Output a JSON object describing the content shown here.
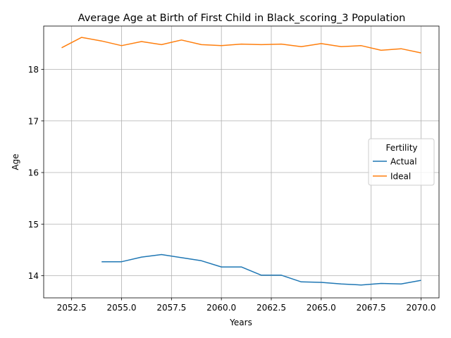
{
  "chart_data": {
    "type": "line",
    "title": "Average Age at Birth of First Child in Black_scoring_3 Population",
    "xlabel": "Years",
    "ylabel": "Age",
    "xlim": [
      2051.1,
      2070.9
    ],
    "ylim": [
      13.57,
      18.84
    ],
    "xticks": [
      2052.5,
      2055.0,
      2057.5,
      2060.0,
      2062.5,
      2065.0,
      2067.5,
      2070.0
    ],
    "xtick_labels": [
      "2052.5",
      "2055.0",
      "2057.5",
      "2060.0",
      "2062.5",
      "2065.0",
      "2067.5",
      "2070.0"
    ],
    "yticks": [
      14,
      15,
      16,
      17,
      18
    ],
    "ytick_labels": [
      "14",
      "15",
      "16",
      "17",
      "18"
    ],
    "grid": true,
    "legend": {
      "title": "Fertility",
      "placement": "center-right"
    },
    "series": [
      {
        "name": "Actual",
        "color": "#1f77b4",
        "x": [
          2054,
          2055,
          2056,
          2057,
          2058,
          2059,
          2060,
          2061,
          2062,
          2063,
          2064,
          2065,
          2066,
          2067,
          2068,
          2069,
          2070
        ],
        "values": [
          14.27,
          14.27,
          14.36,
          14.41,
          14.35,
          14.29,
          14.17,
          14.17,
          14.01,
          14.01,
          13.88,
          13.87,
          13.84,
          13.82,
          13.85,
          13.84,
          13.91
        ]
      },
      {
        "name": "Ideal",
        "color": "#ff7f0e",
        "x": [
          2052,
          2053,
          2054,
          2055,
          2056,
          2057,
          2058,
          2059,
          2060,
          2061,
          2062,
          2063,
          2064,
          2065,
          2066,
          2067,
          2068,
          2069,
          2070
        ],
        "values": [
          18.42,
          18.62,
          18.55,
          18.46,
          18.54,
          18.48,
          18.57,
          18.48,
          18.46,
          18.49,
          18.48,
          18.49,
          18.44,
          18.5,
          18.44,
          18.46,
          18.37,
          18.4,
          18.32
        ]
      }
    ]
  }
}
